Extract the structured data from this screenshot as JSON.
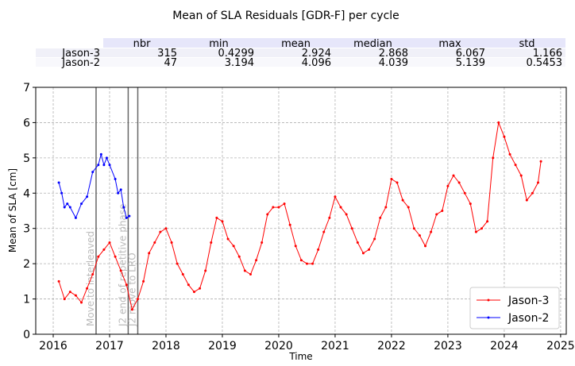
{
  "chart_data": {
    "type": "line",
    "title": "Mean of SLA Residuals  [GDR-F] per cycle",
    "table": {
      "columns": [
        "nbr",
        "min",
        "mean",
        "median",
        "max",
        "std"
      ],
      "rows": [
        {
          "label": "Jason-3",
          "cells": [
            "315",
            "0.4299",
            "2.924",
            "2.868",
            "6.067",
            "1.166"
          ]
        },
        {
          "label": "Jason-2",
          "cells": [
            "47",
            "3.194",
            "4.096",
            "4.039",
            "5.139",
            "0.5453"
          ]
        }
      ]
    },
    "xlabel": "Time",
    "ylabel": "Mean of SLA [cm]",
    "xlim": [
      2015.69,
      2025.1
    ],
    "xticks": [
      2016,
      2017,
      2018,
      2019,
      2020,
      2021,
      2022,
      2023,
      2024,
      2025
    ],
    "ylim": [
      0,
      7
    ],
    "yticks": [
      0,
      1,
      2,
      3,
      4,
      5,
      6,
      7
    ],
    "grid": true,
    "legend": "lower right",
    "events": [
      {
        "x": 2016.76,
        "label": "Move to interleaved"
      },
      {
        "x": 2017.33,
        "label": "J2 end of repetitive phase"
      },
      {
        "x": 2017.5,
        "label": "J2 move to LRO"
      }
    ],
    "series": [
      {
        "name": "Jason-3",
        "color": "#ff0000",
        "x": [
          2016.1,
          2016.2,
          2016.3,
          2016.4,
          2016.5,
          2016.6,
          2016.7,
          2016.8,
          2016.9,
          2017.0,
          2017.1,
          2017.2,
          2017.3,
          2017.4,
          2017.5,
          2017.6,
          2017.7,
          2017.8,
          2017.9,
          2018.0,
          2018.1,
          2018.2,
          2018.3,
          2018.4,
          2018.5,
          2018.6,
          2018.7,
          2018.8,
          2018.9,
          2019.0,
          2019.1,
          2019.2,
          2019.3,
          2019.4,
          2019.5,
          2019.6,
          2019.7,
          2019.8,
          2019.9,
          2020.0,
          2020.1,
          2020.2,
          2020.3,
          2020.4,
          2020.5,
          2020.6,
          2020.7,
          2020.8,
          2020.9,
          2021.0,
          2021.1,
          2021.2,
          2021.3,
          2021.4,
          2021.5,
          2021.6,
          2021.7,
          2021.8,
          2021.9,
          2022.0,
          2022.1,
          2022.2,
          2022.3,
          2022.4,
          2022.5,
          2022.6,
          2022.7,
          2022.8,
          2022.9,
          2023.0,
          2023.1,
          2023.2,
          2023.3,
          2023.4,
          2023.5,
          2023.6,
          2023.7,
          2023.8,
          2023.9,
          2024.0,
          2024.1,
          2024.2,
          2024.3,
          2024.4,
          2024.5,
          2024.6,
          2024.65
        ],
        "values": [
          1.5,
          1.0,
          1.2,
          1.1,
          0.9,
          1.3,
          1.7,
          2.2,
          2.4,
          2.6,
          2.2,
          1.8,
          1.4,
          0.7,
          1.0,
          1.5,
          2.3,
          2.6,
          2.9,
          3.0,
          2.6,
          2.0,
          1.7,
          1.4,
          1.2,
          1.3,
          1.8,
          2.6,
          3.3,
          3.2,
          2.7,
          2.5,
          2.2,
          1.8,
          1.7,
          2.1,
          2.6,
          3.4,
          3.6,
          3.6,
          3.7,
          3.1,
          2.5,
          2.1,
          2.0,
          2.0,
          2.4,
          2.9,
          3.3,
          3.9,
          3.6,
          3.4,
          3.0,
          2.6,
          2.3,
          2.4,
          2.7,
          3.3,
          3.6,
          4.4,
          4.3,
          3.8,
          3.6,
          3.0,
          2.8,
          2.5,
          2.9,
          3.4,
          3.5,
          4.2,
          4.5,
          4.3,
          4.0,
          3.7,
          2.9,
          3.0,
          3.2,
          5.0,
          6.0,
          5.6,
          5.1,
          4.8,
          4.5,
          3.8,
          4.0,
          4.3,
          4.9
        ]
      },
      {
        "name": "Jason-2",
        "color": "#0000ff",
        "x": [
          2016.1,
          2016.15,
          2016.2,
          2016.25,
          2016.3,
          2016.4,
          2016.5,
          2016.6,
          2016.7,
          2016.8,
          2016.85,
          2016.9,
          2016.95,
          2017.0,
          2017.1,
          2017.15,
          2017.2,
          2017.25,
          2017.3,
          2017.35
        ],
        "values": [
          4.3,
          4.0,
          3.6,
          3.7,
          3.6,
          3.3,
          3.7,
          3.9,
          4.6,
          4.8,
          5.1,
          4.8,
          5.0,
          4.8,
          4.4,
          4.0,
          4.1,
          3.6,
          3.3,
          3.35
        ]
      }
    ]
  }
}
